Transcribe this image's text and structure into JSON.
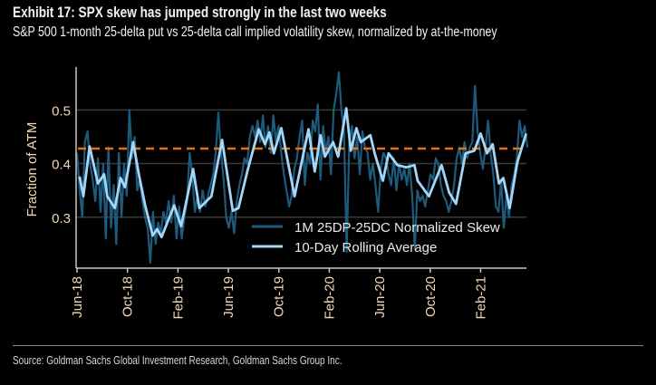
{
  "header": {
    "title": "Exhibit 17: SPX skew has jumped strongly in the last two weeks",
    "subtitle": "S&P 500 1-month 25-delta put vs 25-delta call implied volatility skew, normalized by at-the-money"
  },
  "footer": {
    "source": "Source: Goldman Sachs Global Investment Research, Goldman Sachs Group Inc."
  },
  "colors": {
    "raw": "#1d5a7c",
    "avg": "#a3d6f7",
    "reference": "#e8700f",
    "grid": "#3a3a3a",
    "axis": "#c8c8c8"
  },
  "chart_data": {
    "type": "line",
    "title": "Exhibit 17: SPX skew has jumped strongly in the last two weeks",
    "xlabel": "",
    "ylabel": "Fraction of ATM",
    "x_unit": "months since Jun-2018",
    "xlim": [
      0,
      35.7
    ],
    "ylim": [
      0.205,
      0.58
    ],
    "yticks": [
      0.3,
      0.4,
      0.5
    ],
    "ytick_labels": [
      "0.3",
      "0.4",
      "0.5"
    ],
    "xticks": [
      0,
      4,
      8,
      12,
      16,
      20,
      24,
      28,
      32
    ],
    "xtick_labels": [
      "Jun-18",
      "Oct-18",
      "Feb-19",
      "Jun-19",
      "Oct-19",
      "Feb-20",
      "Jun-20",
      "Oct-20",
      "Feb-21"
    ],
    "grid": "horizontal",
    "legend_position": "bottom-center",
    "reference_line": {
      "value": 0.428,
      "style": "dashed"
    },
    "series": [
      {
        "name": "1M 25DP-25DC Normalized Skew",
        "x_start": 0,
        "x_end": 35.7,
        "values": [
          0.42,
          0.35,
          0.3,
          0.44,
          0.46,
          0.4,
          0.37,
          0.33,
          0.41,
          0.31,
          0.4,
          0.26,
          0.43,
          0.28,
          0.36,
          0.25,
          0.42,
          0.3,
          0.4,
          0.34,
          0.5,
          0.41,
          0.45,
          0.35,
          0.37,
          0.33,
          0.3,
          0.28,
          0.215,
          0.31,
          0.25,
          0.29,
          0.27,
          0.31,
          0.29,
          0.33,
          0.29,
          0.34,
          0.26,
          0.32,
          0.26,
          0.3,
          0.33,
          0.42,
          0.38,
          0.31,
          0.34,
          0.31,
          0.35,
          0.32,
          0.34,
          0.36,
          0.38,
          0.42,
          0.495,
          0.42,
          0.37,
          0.3,
          0.28,
          0.31,
          0.27,
          0.33,
          0.36,
          0.38,
          0.41,
          0.4,
          0.45,
          0.47,
          0.45,
          0.48,
          0.44,
          0.49,
          0.43,
          0.47,
          0.42,
          0.49,
          0.44,
          0.47,
          0.42,
          0.38,
          0.35,
          0.32,
          0.34,
          0.39,
          0.41,
          0.45,
          0.48,
          0.36,
          0.42,
          0.4,
          0.48,
          0.46,
          0.51,
          0.37,
          0.47,
          0.42,
          0.45,
          0.38,
          0.5,
          0.53,
          0.57,
          0.5,
          0.46,
          0.235,
          0.44,
          0.47,
          0.41,
          0.45,
          0.38,
          0.46,
          0.43,
          0.42,
          0.37,
          0.4,
          0.36,
          0.31,
          0.39,
          0.42,
          0.41,
          0.38,
          0.36,
          0.41,
          0.35,
          0.4,
          0.37,
          0.39,
          0.36,
          0.4,
          0.34,
          0.24,
          0.35,
          0.33,
          0.34,
          0.32,
          0.35,
          0.38,
          0.37,
          0.41,
          0.4,
          0.36,
          0.34,
          0.33,
          0.31,
          0.33,
          0.36,
          0.41,
          0.43,
          0.4,
          0.44,
          0.41,
          0.43,
          0.44,
          0.545,
          0.46,
          0.42,
          0.39,
          0.43,
          0.48,
          0.42,
          0.38,
          0.32,
          0.31,
          0.37,
          0.28,
          0.34,
          0.3,
          0.36,
          0.38,
          0.41,
          0.48,
          0.45,
          0.47,
          0.43
        ]
      },
      {
        "name": "10-Day Rolling Average",
        "points": [
          [
            0.2,
            0.376
          ],
          [
            0.5,
            0.339
          ],
          [
            1.0,
            0.432
          ],
          [
            1.65,
            0.363
          ],
          [
            2.15,
            0.38
          ],
          [
            2.4,
            0.339
          ],
          [
            3.0,
            0.317
          ],
          [
            3.45,
            0.373
          ],
          [
            3.8,
            0.356
          ],
          [
            4.45,
            0.44
          ],
          [
            4.9,
            0.38
          ],
          [
            5.4,
            0.322
          ],
          [
            6.0,
            0.266
          ],
          [
            6.35,
            0.278
          ],
          [
            6.7,
            0.263
          ],
          [
            7.7,
            0.322
          ],
          [
            8.25,
            0.283
          ],
          [
            9.2,
            0.39
          ],
          [
            9.7,
            0.317
          ],
          [
            10.65,
            0.339
          ],
          [
            11.5,
            0.444
          ],
          [
            12.35,
            0.312
          ],
          [
            12.8,
            0.317
          ],
          [
            13.5,
            0.385
          ],
          [
            14.4,
            0.464
          ],
          [
            14.9,
            0.436
          ],
          [
            15.25,
            0.458
          ],
          [
            15.6,
            0.419
          ],
          [
            16.2,
            0.466
          ],
          [
            17.25,
            0.339
          ],
          [
            18.35,
            0.464
          ],
          [
            18.85,
            0.385
          ],
          [
            19.3,
            0.453
          ],
          [
            19.65,
            0.413
          ],
          [
            20.3,
            0.44
          ],
          [
            20.7,
            0.413
          ],
          [
            21.35,
            0.503
          ],
          [
            21.7,
            0.424
          ],
          [
            22.15,
            0.466
          ],
          [
            22.5,
            0.44
          ],
          [
            23.25,
            0.453
          ],
          [
            23.6,
            0.419
          ],
          [
            24.25,
            0.368
          ],
          [
            24.7,
            0.419
          ],
          [
            25.4,
            0.397
          ],
          [
            26.1,
            0.393
          ],
          [
            26.75,
            0.397
          ],
          [
            27.0,
            0.368
          ],
          [
            27.9,
            0.339
          ],
          [
            28.9,
            0.397
          ],
          [
            29.5,
            0.346
          ],
          [
            30.05,
            0.325
          ],
          [
            30.8,
            0.419
          ],
          [
            31.5,
            0.424
          ],
          [
            32.0,
            0.456
          ],
          [
            32.5,
            0.419
          ],
          [
            32.95,
            0.436
          ],
          [
            33.45,
            0.363
          ],
          [
            33.8,
            0.373
          ],
          [
            34.3,
            0.317
          ],
          [
            34.9,
            0.402
          ],
          [
            35.6,
            0.456
          ]
        ]
      }
    ]
  }
}
